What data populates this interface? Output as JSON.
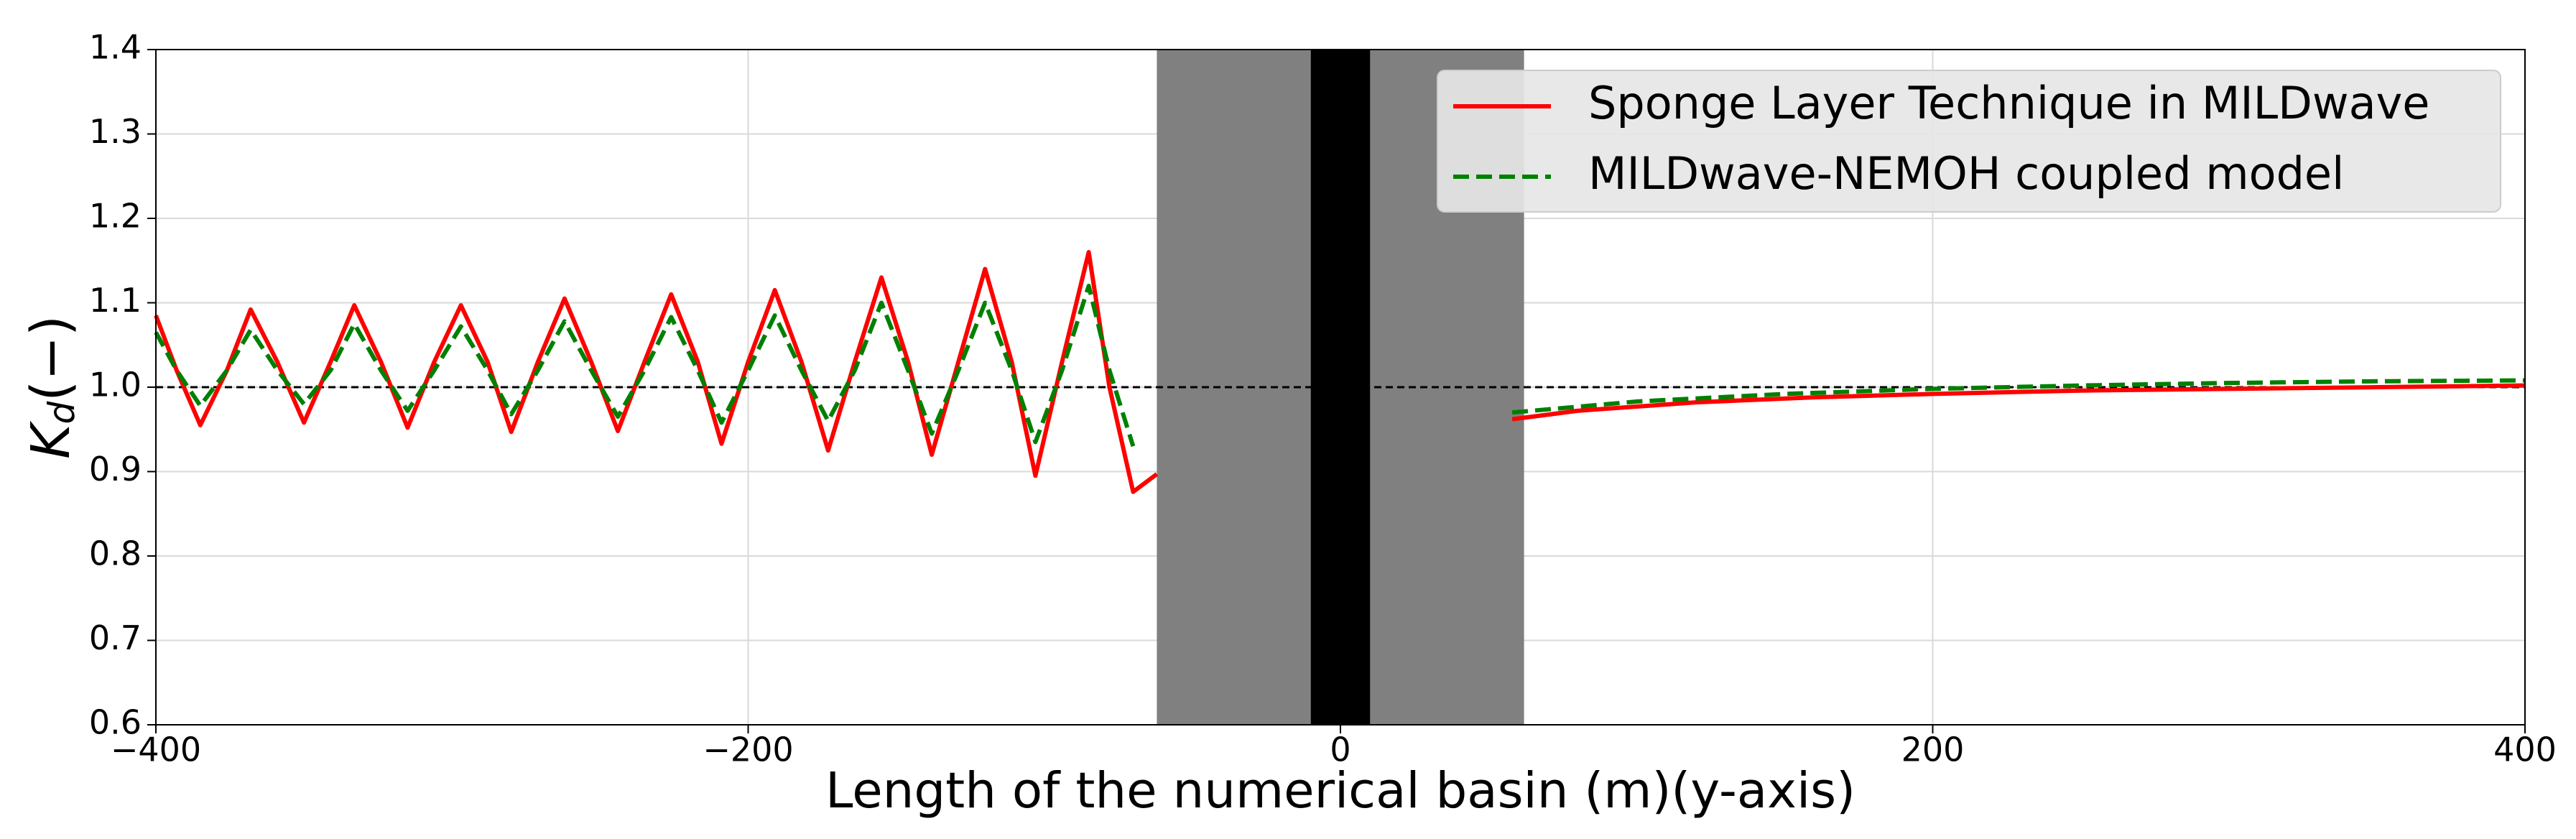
{
  "chart_data": {
    "type": "line",
    "xlabel": "Length of the numerical basin (m)(y-axis)",
    "ylabel": {
      "symbol": "K",
      "subscript": "d",
      "unit": "(−)"
    },
    "xlim": [
      -400,
      400
    ],
    "xticks": [
      {
        "value": -400,
        "label": "−400"
      },
      {
        "value": -200,
        "label": "−200"
      },
      0,
      200,
      400
    ],
    "ylim": [
      0.6,
      1.4
    ],
    "yticks": [
      0.6,
      0.7,
      0.8,
      0.9,
      {
        "value": 1,
        "label": "1.0"
      },
      1.1,
      1.2,
      1.3,
      1.4
    ],
    "grid": true,
    "legend": "upper right",
    "hline": 1,
    "shaded_regions": [
      {
        "xlim": [
          -62,
          62
        ],
        "color": "#808080"
      },
      {
        "xlim": [
          -10,
          10
        ],
        "color": "#000000"
      }
    ],
    "series": [
      {
        "name": "Sponge Layer Technique in MILDwave",
        "color": "#ff0000",
        "style": "solid",
        "x": [
          -400,
          -393,
          -385,
          -376,
          -368,
          -359,
          -350,
          -341,
          -333,
          -324,
          -315,
          -306,
          -297,
          -288,
          -280,
          -271,
          -262,
          -253,
          -244,
          -235,
          -226,
          -217,
          -209,
          -200,
          -191,
          -182,
          -173,
          -164,
          -155,
          -146,
          -138,
          -129,
          -120,
          -111,
          -103,
          -94,
          -85,
          -78,
          -70,
          -62,
          0,
          58,
          80,
          120,
          160,
          200,
          250,
          300,
          350,
          400
        ],
        "values": [
          1.085,
          1.02,
          0.955,
          1.02,
          1.092,
          1.03,
          0.958,
          1.03,
          1.097,
          1.03,
          0.952,
          1.03,
          1.097,
          1.03,
          0.947,
          1.03,
          1.105,
          1.03,
          0.948,
          1.03,
          1.11,
          1.03,
          0.933,
          1.03,
          1.115,
          1.03,
          0.925,
          1.03,
          1.13,
          1.03,
          0.92,
          1.03,
          1.14,
          1.03,
          0.895,
          1.03,
          1.16,
          1.0,
          0.876,
          0.897,
          null,
          0.962,
          0.972,
          0.982,
          0.988,
          0.992,
          0.996,
          0.998,
          1.0,
          1.002
        ]
      },
      {
        "name": "MILDwave-NEMOH coupled model",
        "color": "#008000",
        "style": "dashed",
        "x": [
          -400,
          -393,
          -385,
          -376,
          -368,
          -359,
          -350,
          -341,
          -333,
          -324,
          -315,
          -306,
          -297,
          -288,
          -280,
          -271,
          -262,
          -253,
          -244,
          -235,
          -226,
          -217,
          -209,
          -200,
          -191,
          -182,
          -173,
          -164,
          -155,
          -146,
          -138,
          -129,
          -120,
          -111,
          -103,
          -94,
          -85,
          -78,
          -70,
          0,
          58,
          100,
          150,
          200,
          250,
          300,
          350,
          400
        ],
        "values": [
          1.065,
          1.02,
          0.978,
          1.02,
          1.068,
          1.02,
          0.98,
          1.02,
          1.075,
          1.02,
          0.972,
          1.02,
          1.072,
          1.02,
          0.968,
          1.02,
          1.078,
          1.02,
          0.965,
          1.02,
          1.083,
          1.02,
          0.958,
          1.02,
          1.085,
          1.02,
          0.96,
          1.02,
          1.1,
          1.02,
          0.945,
          1.02,
          1.1,
          1.02,
          0.935,
          1.02,
          1.12,
          1.02,
          0.93,
          null,
          0.97,
          0.983,
          0.992,
          0.998,
          1.002,
          1.005,
          1.007,
          1.008
        ]
      }
    ]
  }
}
